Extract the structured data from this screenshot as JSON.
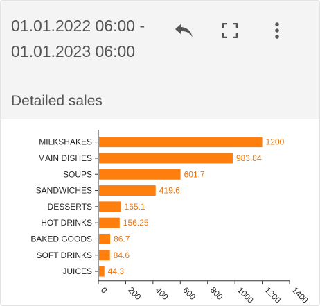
{
  "header": {
    "date_range": "01.01.2022 06:00 - 01.01.2023 06:00",
    "subtitle": "Detailed sales"
  },
  "toolbar": {
    "back_icon": "undo-arrow-icon",
    "fullscreen_icon": "fullscreen-icon",
    "menu_icon": "more-vertical-icon"
  },
  "colors": {
    "bar": "#ff7f0e",
    "value_label": "#e8740c",
    "text": "#555555"
  },
  "chart_data": {
    "type": "bar",
    "orientation": "horizontal",
    "title": "",
    "xlabel": "",
    "ylabel": "",
    "categories": [
      "MILKSHAKES",
      "MAIN DISHES",
      "SOUPS",
      "SANDWICHES",
      "DESSERTS",
      "HOT DRINKS",
      "BAKED GOODS",
      "SOFT DRINKS",
      "JUICES"
    ],
    "values": [
      1200,
      983.84,
      601.7,
      419.6,
      165.1,
      156.25,
      86.7,
      84.6,
      44.3
    ],
    "value_labels": [
      "1200",
      "983.84",
      "601.7",
      "419.6",
      "165.1",
      "156.25",
      "86.7",
      "84.6",
      "44.3"
    ],
    "xlim": [
      0,
      1400
    ],
    "xticks": [
      "0",
      "200",
      "400",
      "600",
      "800",
      "1000",
      "1200",
      "1400"
    ],
    "grid": false,
    "legend": "none"
  }
}
